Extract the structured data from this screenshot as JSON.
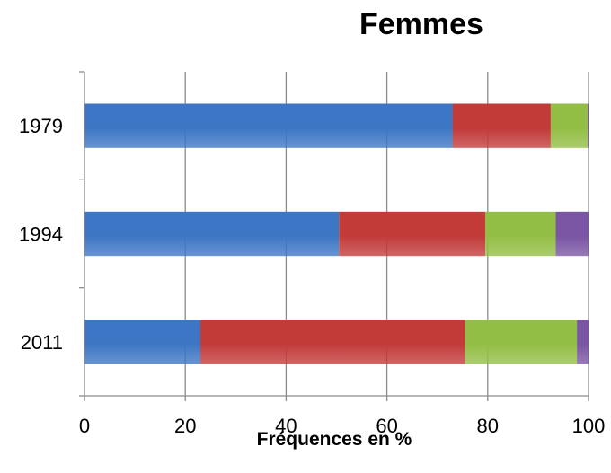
{
  "chart_data": {
    "type": "bar",
    "orientation": "horizontal",
    "stacked": true,
    "title": "Femmes",
    "xlabel": "Fréquences en %",
    "ylabel": "",
    "xlim": [
      0,
      100
    ],
    "xticks": [
      "0",
      "20",
      "40",
      "60",
      "80",
      "100"
    ],
    "grid": true,
    "categories": [
      "1979",
      "1994",
      "2011"
    ],
    "series": [
      {
        "values": [
          73,
          50.5,
          23
        ],
        "color": "#3d76c4"
      },
      {
        "values": [
          19.5,
          29,
          52.5
        ],
        "color": "#c23b39"
      },
      {
        "values": [
          7.3,
          14,
          22.2
        ],
        "color": "#93be45"
      },
      {
        "values": [
          0.2,
          6.5,
          2.3
        ],
        "color": "#7a55a3"
      }
    ]
  }
}
